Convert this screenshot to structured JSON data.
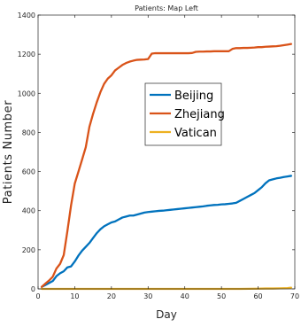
{
  "chart_data": {
    "type": "line",
    "title": "Patients: Map Left",
    "xlabel": "Day",
    "ylabel": "Patients Number",
    "xlim": [
      0,
      70
    ],
    "ylim": [
      0,
      1400
    ],
    "xticks": [
      0,
      10,
      20,
      30,
      40,
      50,
      60,
      70
    ],
    "yticks": [
      0,
      200,
      400,
      600,
      800,
      1000,
      1200,
      1400
    ],
    "grid": false,
    "legend_position": "center",
    "series": [
      {
        "name": "Beijing",
        "color": "#0072BD",
        "x": [
          1,
          2,
          3,
          4,
          5,
          6,
          7,
          8,
          9,
          10,
          11,
          12,
          13,
          14,
          15,
          16,
          17,
          18,
          19,
          20,
          21,
          22,
          23,
          24,
          25,
          26,
          27,
          28,
          29,
          30,
          31,
          32,
          33,
          34,
          35,
          36,
          37,
          38,
          39,
          40,
          41,
          42,
          43,
          44,
          45,
          46,
          47,
          48,
          49,
          50,
          51,
          52,
          53,
          54,
          55,
          56,
          57,
          58,
          59,
          60,
          61,
          62,
          63,
          64,
          65,
          66,
          67,
          68,
          69
        ],
        "y": [
          10,
          20,
          30,
          40,
          65,
          80,
          90,
          110,
          115,
          140,
          170,
          195,
          215,
          235,
          260,
          285,
          305,
          320,
          330,
          340,
          345,
          355,
          365,
          370,
          375,
          375,
          380,
          385,
          390,
          393,
          395,
          397,
          399,
          400,
          402,
          404,
          406,
          408,
          410,
          412,
          414,
          416,
          418,
          420,
          422,
          425,
          427,
          429,
          430,
          432,
          433,
          435,
          437,
          440,
          450,
          460,
          470,
          480,
          490,
          505,
          520,
          540,
          555,
          560,
          565,
          568,
          572,
          575,
          578
        ]
      },
      {
        "name": "Zhejiang",
        "color": "#D95319",
        "x": [
          1,
          2,
          3,
          4,
          5,
          6,
          7,
          8,
          9,
          10,
          11,
          12,
          13,
          14,
          15,
          16,
          17,
          18,
          19,
          20,
          21,
          22,
          23,
          24,
          25,
          26,
          27,
          28,
          29,
          30,
          31,
          32,
          33,
          34,
          35,
          36,
          37,
          38,
          39,
          40,
          41,
          42,
          43,
          44,
          45,
          46,
          47,
          48,
          49,
          50,
          51,
          52,
          53,
          54,
          55,
          56,
          57,
          58,
          59,
          60,
          61,
          62,
          63,
          64,
          65,
          66,
          67,
          68,
          69
        ],
        "y": [
          10,
          27,
          43,
          62,
          104,
          128,
          173,
          296,
          428,
          538,
          599,
          661,
          724,
          829,
          895,
          954,
          1006,
          1048,
          1075,
          1092,
          1117,
          1131,
          1145,
          1155,
          1162,
          1167,
          1171,
          1172,
          1173,
          1175,
          1203,
          1205,
          1205,
          1205,
          1205,
          1205,
          1205,
          1205,
          1205,
          1205,
          1205,
          1206,
          1212,
          1213,
          1213,
          1214,
          1214,
          1215,
          1215,
          1215,
          1215,
          1215,
          1227,
          1231,
          1231,
          1232,
          1232,
          1233,
          1234,
          1236,
          1236,
          1238,
          1239,
          1240,
          1241,
          1243,
          1246,
          1249,
          1252
        ]
      },
      {
        "name": "Vatican",
        "color": "#EDB120",
        "x": [
          1,
          10,
          20,
          30,
          40,
          50,
          55,
          60,
          62,
          64,
          66,
          68,
          69
        ],
        "y": [
          0,
          0,
          0,
          0,
          0,
          0,
          0,
          1,
          2,
          2,
          3,
          4,
          6
        ]
      }
    ]
  }
}
